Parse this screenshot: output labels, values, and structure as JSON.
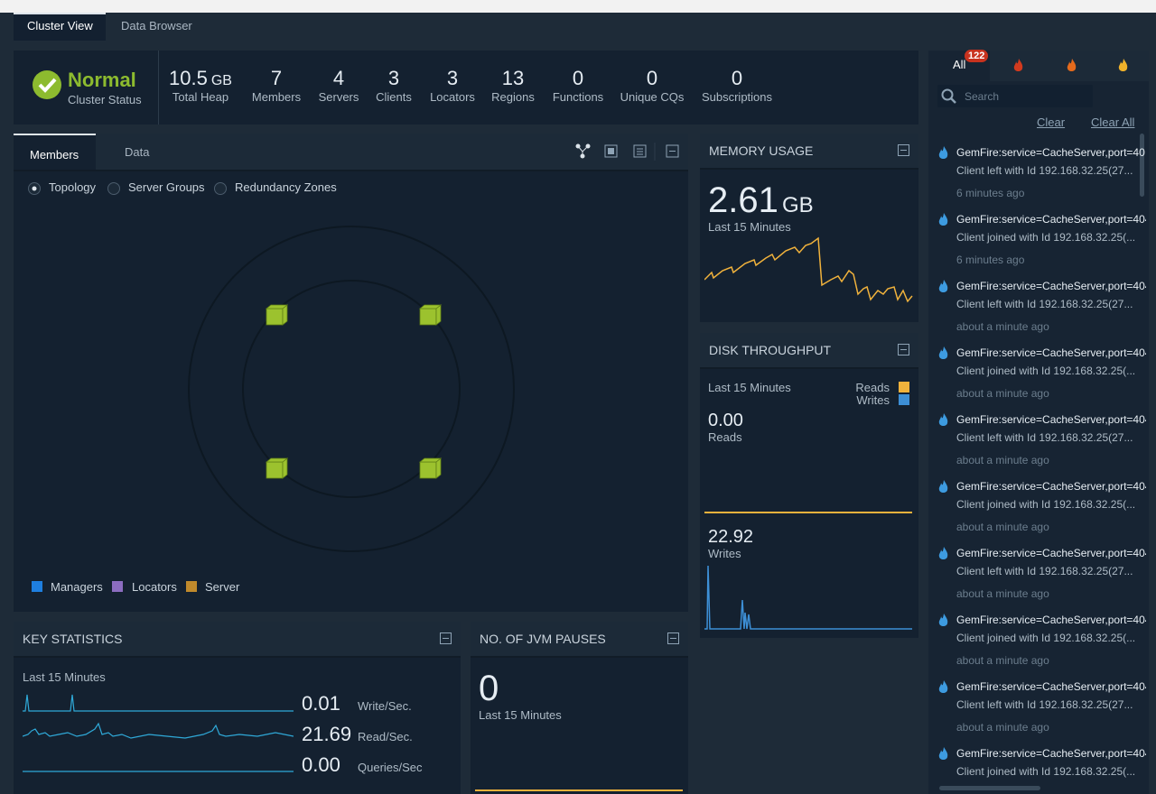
{
  "tabs": [
    "Cluster View",
    "Data Browser"
  ],
  "status": {
    "label": "Normal",
    "caption": "Cluster Status"
  },
  "stats": [
    {
      "value": "10.5",
      "unit": "GB",
      "label": "Total Heap"
    },
    {
      "value": "7",
      "label": "Members"
    },
    {
      "value": "4",
      "label": "Servers"
    },
    {
      "value": "3",
      "label": "Clients"
    },
    {
      "value": "3",
      "label": "Locators"
    },
    {
      "value": "13",
      "label": "Regions"
    },
    {
      "value": "0",
      "label": "Functions"
    },
    {
      "value": "0",
      "label": "Unique CQs"
    },
    {
      "value": "0",
      "label": "Subscriptions"
    }
  ],
  "members_panel": {
    "tabs": [
      "Members",
      "Data"
    ],
    "views": [
      "Topology",
      "Server Groups",
      "Redundancy Zones"
    ],
    "legend": [
      "Managers",
      "Locators",
      "Server"
    ]
  },
  "memory": {
    "title": "MEMORY USAGE",
    "value": "2.61",
    "unit": "GB",
    "caption": "Last 15 Minutes"
  },
  "disk": {
    "title": "DISK THROUGHPUT",
    "caption": "Last 15 Minutes",
    "legend": [
      "Reads",
      "Writes"
    ],
    "reads": {
      "value": "0.00",
      "label": "Reads"
    },
    "writes": {
      "value": "22.92",
      "label": "Writes"
    }
  },
  "key_stats": {
    "title": "KEY STATISTICS",
    "caption": "Last 15 Minutes",
    "rows": [
      {
        "value": "0.01",
        "label": "Write/Sec."
      },
      {
        "value": "21.69",
        "label": "Read/Sec."
      },
      {
        "value": "0.00",
        "label": "Queries/Sec"
      }
    ]
  },
  "jvm": {
    "title": "NO. OF JVM PAUSES",
    "value": "0",
    "caption": "Last 15 Minutes"
  },
  "alerts": {
    "tab": "All",
    "badge": "122",
    "search": "Search",
    "clear": "Clear",
    "clear_all": "Clear All",
    "items": [
      {
        "source": "GemFire:service=CacheServer,port=40",
        "message": "Client left with Id 192.168.32.25(27...",
        "time": "6 minutes ago"
      },
      {
        "source": "GemFire:service=CacheServer,port=404",
        "message": "Client joined with Id 192.168.32.25(...",
        "time": "6 minutes ago"
      },
      {
        "source": "GemFire:service=CacheServer,port=404",
        "message": "Client left with Id 192.168.32.25(27...",
        "time": "about a minute ago"
      },
      {
        "source": "GemFire:service=CacheServer,port=404",
        "message": "Client joined with Id 192.168.32.25(...",
        "time": "about a minute ago"
      },
      {
        "source": "GemFire:service=CacheServer,port=404",
        "message": "Client left with Id 192.168.32.25(27...",
        "time": "about a minute ago"
      },
      {
        "source": "GemFire:service=CacheServer,port=404",
        "message": "Client joined with Id 192.168.32.25(...",
        "time": "about a minute ago"
      },
      {
        "source": "GemFire:service=CacheServer,port=404",
        "message": "Client left with Id 192.168.32.25(27...",
        "time": "about a minute ago"
      },
      {
        "source": "GemFire:service=CacheServer,port=404",
        "message": "Client joined with Id 192.168.32.25(...",
        "time": "about a minute ago"
      },
      {
        "source": "GemFire:service=CacheServer,port=404",
        "message": "Client left with Id 192.168.32.25(27...",
        "time": "about a minute ago"
      },
      {
        "source": "GemFire:service=CacheServer,port=404",
        "message": "Client joined with Id 192.168.32.25(..."
      }
    ]
  }
}
